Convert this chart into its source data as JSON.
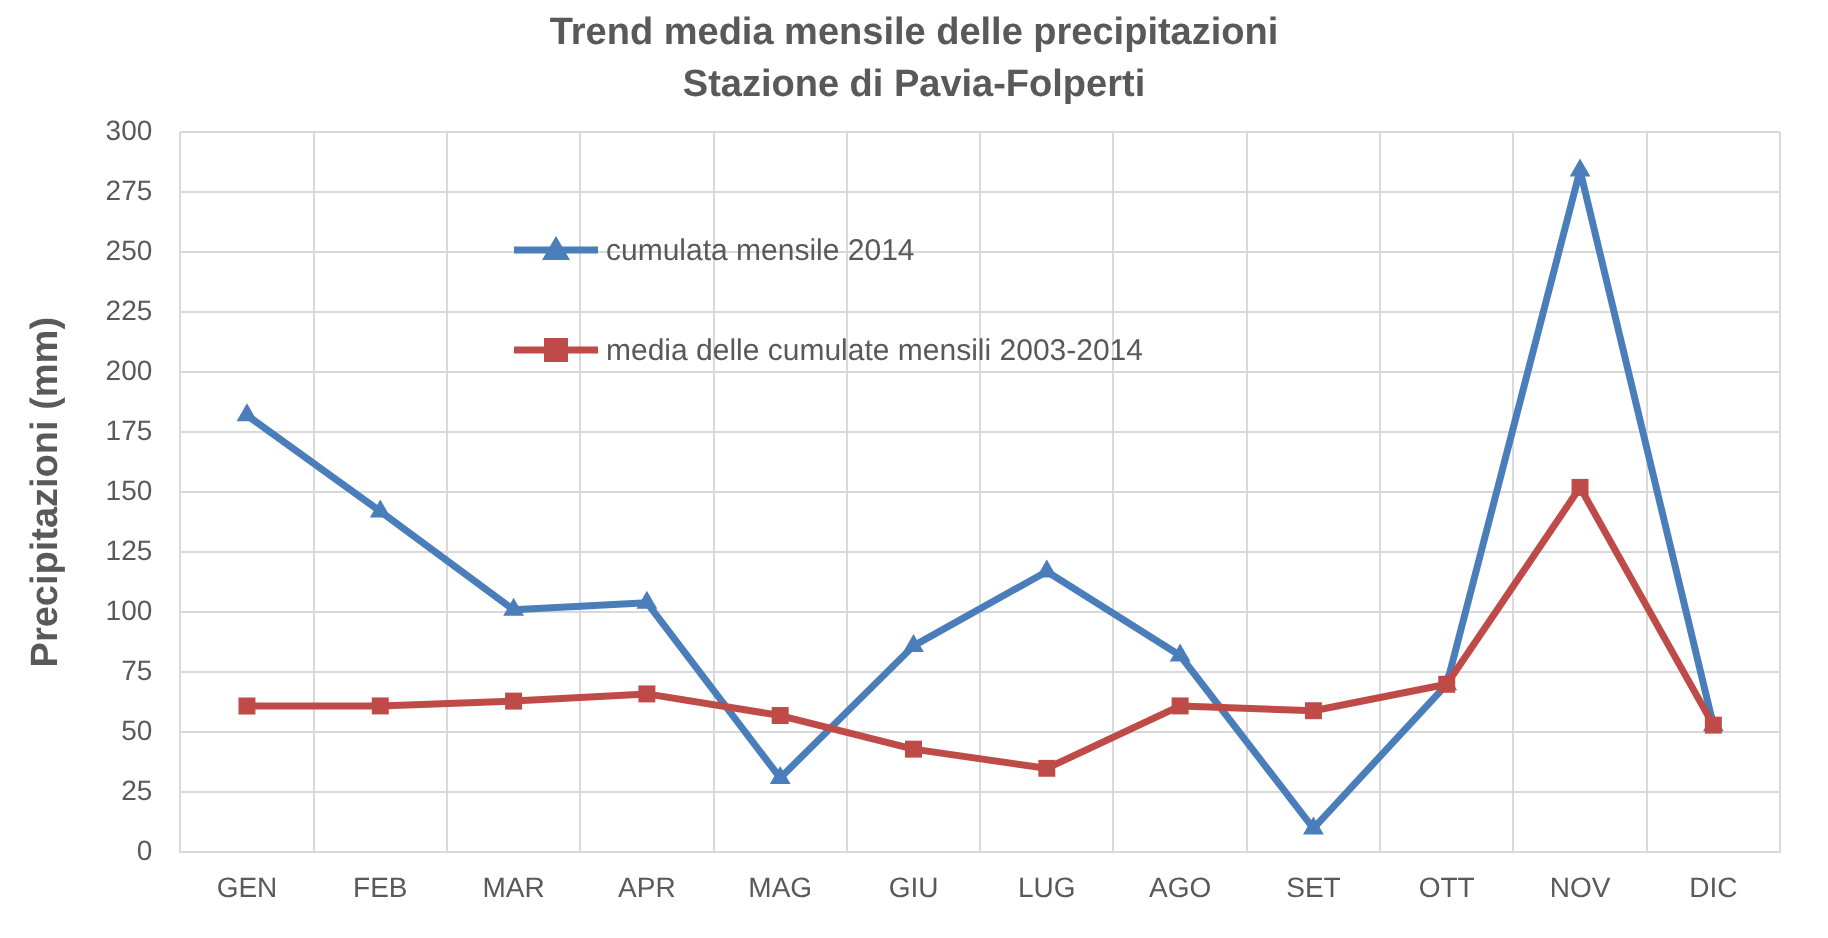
{
  "chart_data": {
    "type": "line",
    "title": "Trend media mensile delle precipitazioni\nStazione di Pavia-Folperti",
    "ylabel": "Precipitazioni (mm)",
    "categories": [
      "GEN",
      "FEB",
      "MAR",
      "APR",
      "MAG",
      "GIU",
      "LUG",
      "AGO",
      "SET",
      "OTT",
      "NOV",
      "DIC"
    ],
    "series": [
      {
        "name": "cumulata mensile 2014",
        "color": "#4a7ebb",
        "marker": "triangle",
        "values": [
          182,
          142,
          101,
          104,
          31,
          86,
          117,
          82,
          10,
          70,
          284,
          53
        ]
      },
      {
        "name": "media delle cumulate mensili 2003-2014",
        "color": "#be4b48",
        "marker": "square",
        "values": [
          61,
          61,
          63,
          66,
          57,
          43,
          35,
          61,
          59,
          70,
          152,
          53
        ]
      }
    ],
    "ylim": [
      0,
      300
    ],
    "yticks": [
      0,
      25,
      50,
      75,
      100,
      125,
      150,
      175,
      200,
      225,
      250,
      275,
      300
    ],
    "grid": true,
    "legend": "top",
    "line_style": "solid"
  }
}
